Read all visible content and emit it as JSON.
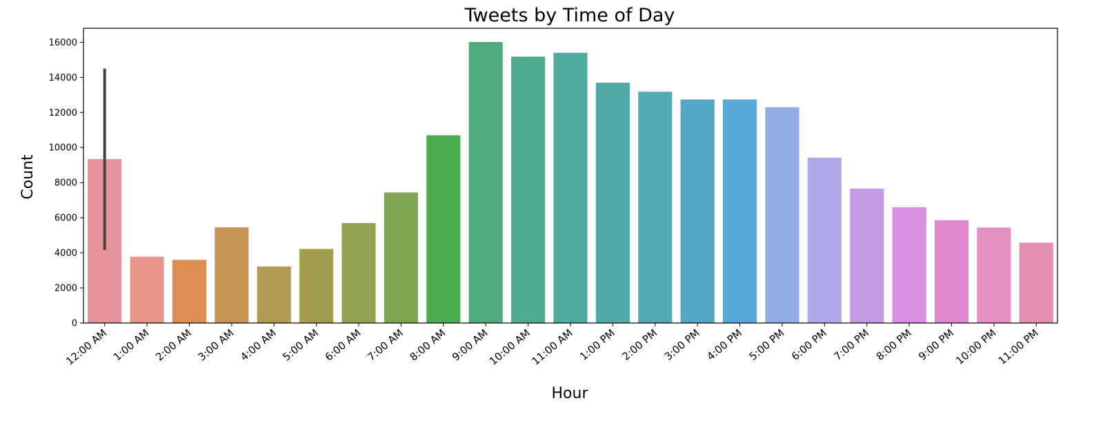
{
  "chart_data": {
    "type": "bar",
    "title": "Tweets by Time of Day",
    "xlabel": "Hour",
    "ylabel": "Count",
    "ylim": [
      0,
      16800
    ],
    "yticks": [
      0,
      2000,
      4000,
      6000,
      8000,
      10000,
      12000,
      14000,
      16000
    ],
    "ytick_labels": [
      "0",
      "2000",
      "4000",
      "6000",
      "8000",
      "10000",
      "12000",
      "14000",
      "16000"
    ],
    "grid": false,
    "legend": "none",
    "categories": [
      "12:00 AM",
      "1:00 AM",
      "2:00 AM",
      "3:00 AM",
      "4:00 AM",
      "5:00 AM",
      "6:00 AM",
      "7:00 AM",
      "8:00 AM",
      "9:00 AM",
      "10:00 AM",
      "11:00 AM",
      "1:00 PM",
      "2:00 PM",
      "3:00 PM",
      "4:00 PM",
      "5:00 PM",
      "6:00 PM",
      "7:00 PM",
      "8:00 PM",
      "9:00 PM",
      "10:00 PM",
      "11:00 PM"
    ],
    "values": [
      9340,
      3780,
      3600,
      5450,
      3220,
      4220,
      5700,
      7440,
      10700,
      16020,
      15180,
      15400,
      13700,
      13180,
      12740,
      12740,
      12300,
      9420,
      7660,
      6600,
      5860,
      5440,
      4580
    ],
    "error_bars": [
      {
        "category": "12:00 AM",
        "low": 4160,
        "high": 14500
      }
    ],
    "colors": [
      "#e8929c",
      "#e8958a",
      "#dd8e52",
      "#c59452",
      "#b39b53",
      "#a49d4e",
      "#93a450",
      "#7ea64f",
      "#4bad50",
      "#4fab7e",
      "#4eaa90",
      "#50aa9e",
      "#4eaba7",
      "#51aab6",
      "#53a9c4",
      "#56a9da",
      "#93ace4",
      "#aea8e8",
      "#c39be4",
      "#d88ee1",
      "#e089d0",
      "#e58fc4",
      "#e68fb2"
    ],
    "error_bar_color": "#424242"
  }
}
